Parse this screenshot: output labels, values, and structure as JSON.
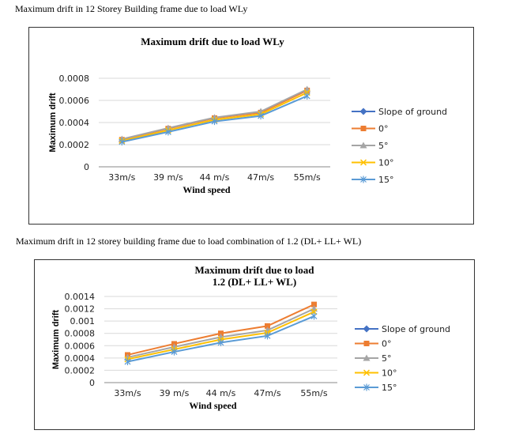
{
  "captions": {
    "first": "Maximum drift in 12 Storey Building frame due to load WLy",
    "second": "Maximum drift in 12 storey building frame due to load combination of 1.2 (DL+ LL+ WL)"
  },
  "colors": {
    "slope": "#4472C4",
    "deg0": "#ED7D31",
    "deg5": "#A5A5A5",
    "deg10": "#FFC000",
    "deg15": "#5B9BD5"
  },
  "chart_data": [
    {
      "type": "line",
      "title": [
        "Maximum drift due to load  WLy"
      ],
      "xlabel": "Wind speed",
      "ylabel": "Maximum drift",
      "categories": [
        "33m/s",
        "39 m/s",
        "44 m/s",
        "47m/s",
        "55m/s"
      ],
      "ylim": [
        0,
        0.0008
      ],
      "yticks": [
        0,
        0.0002,
        0.0004,
        0.0006,
        0.0008
      ],
      "ytick_labels": [
        "0",
        "0.0002",
        "0.0004",
        "0.0006",
        "0.0008"
      ],
      "grid": true,
      "legend": "right",
      "legend_entries": [
        "Slope of ground",
        "0°",
        "5°",
        "10°",
        "15°"
      ],
      "series": [
        {
          "name": "0°",
          "marker": "square",
          "values": [
            0.000245,
            0.000345,
            0.00044,
            0.00049,
            0.00069
          ]
        },
        {
          "name": "5°",
          "marker": "triangle",
          "values": [
            0.00025,
            0.00035,
            0.000445,
            0.0005,
            0.0007
          ]
        },
        {
          "name": "10°",
          "marker": "x",
          "values": [
            0.000235,
            0.00033,
            0.000425,
            0.000475,
            0.00067
          ]
        },
        {
          "name": "15°",
          "marker": "star",
          "values": [
            0.000225,
            0.000315,
            0.00041,
            0.00046,
            0.00064
          ]
        }
      ]
    },
    {
      "type": "line",
      "title": [
        "Maximum drift due to load",
        "1.2 (DL+ LL+ WL)"
      ],
      "xlabel": "Wind speed",
      "ylabel": "Maximum drift",
      "categories": [
        "33m/s",
        "39 m/s",
        "44 m/s",
        "47m/s",
        "55m/s"
      ],
      "ylim": [
        0,
        0.0014
      ],
      "yticks": [
        0,
        0.0002,
        0.0004,
        0.0006,
        0.0008,
        0.001,
        0.0012,
        0.0014
      ],
      "ytick_labels": [
        "0",
        "0.0002",
        "0.0004",
        "0.0006",
        "0.0008",
        "0.001",
        "0.0012",
        "0.0014"
      ],
      "grid": true,
      "legend": "right",
      "legend_entries": [
        "Slope of ground",
        "0°",
        "5°",
        "10°",
        "15°"
      ],
      "series": [
        {
          "name": "0°",
          "marker": "square",
          "values": [
            0.00045,
            0.00063,
            0.0008,
            0.00092,
            0.00127
          ]
        },
        {
          "name": "5°",
          "marker": "triangle",
          "values": [
            0.00041,
            0.00058,
            0.00074,
            0.00085,
            0.0012
          ]
        },
        {
          "name": "10°",
          "marker": "x",
          "values": [
            0.00038,
            0.00054,
            0.0007,
            0.00081,
            0.00115
          ]
        },
        {
          "name": "15°",
          "marker": "star",
          "values": [
            0.00034,
            0.0005,
            0.00065,
            0.00076,
            0.00108
          ]
        }
      ]
    }
  ]
}
